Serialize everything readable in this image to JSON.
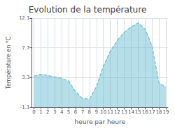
{
  "chart_data": {
    "type": "area",
    "title": "Evolution de la température",
    "xlabel": "heure par heure",
    "ylabel": "Température en °C",
    "x": [
      0,
      1,
      2,
      3,
      4,
      5,
      6,
      7,
      8,
      9,
      10,
      11,
      12,
      13,
      14,
      15,
      16,
      17,
      18,
      19
    ],
    "values": [
      3.5,
      3.8,
      3.6,
      3.4,
      3.2,
      2.8,
      1.2,
      0.2,
      0.1,
      2.0,
      5.0,
      7.2,
      8.8,
      10.0,
      10.8,
      11.4,
      10.5,
      8.0,
      2.5,
      1.9
    ],
    "xlim": [
      -0.3,
      19.3
    ],
    "xticks": [
      0,
      1,
      2,
      3,
      4,
      5,
      6,
      7,
      8,
      9,
      10,
      11,
      12,
      13,
      14,
      15,
      16,
      17,
      18,
      19
    ],
    "ylim": [
      -1.1,
      12.1
    ],
    "yticks": [
      -1.1,
      3.3,
      7.7,
      12.1
    ],
    "color": "#6bbdd4",
    "line_style": "dashed",
    "grid": true
  }
}
